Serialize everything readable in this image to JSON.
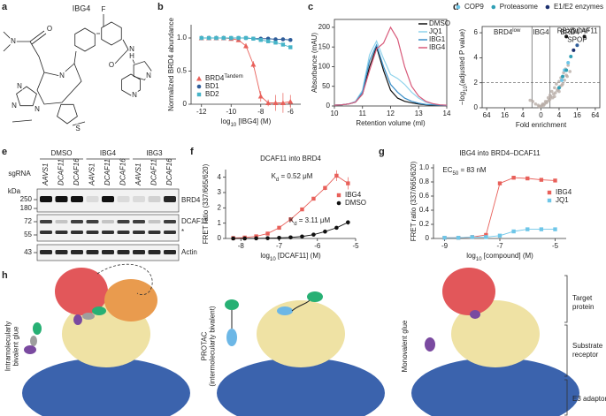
{
  "panels": [
    "a",
    "b",
    "c",
    "d",
    "e",
    "f",
    "g",
    "h"
  ],
  "structure": {
    "name": "IBG4",
    "atoms": [
      "N",
      "O",
      "N",
      "N",
      "N",
      "N",
      "S",
      "F",
      "O",
      "N",
      "H",
      "N",
      "N"
    ]
  },
  "chart_data": [
    {
      "type": "line",
      "xlabel": [
        "log",
        "10",
        " [IBG4] (M)"
      ],
      "ylabel": "Normalized BRD4 abundance",
      "xlim": [
        -12.7,
        -5.3
      ],
      "xticks": [
        -12,
        -10,
        -8,
        -6
      ],
      "ylim": [
        0,
        1.2
      ],
      "yticks": [
        0,
        0.5,
        {
          "value": 1,
          "label": "1.0"
        }
      ],
      "markers": true,
      "legend": "lower left",
      "x": [
        -12,
        -11.5,
        -11,
        -10.5,
        -10,
        -9.5,
        -9,
        -8.5,
        -8,
        -7.5,
        -7,
        -6.5,
        -6
      ],
      "series": [
        {
          "name": [
            "BRD4",
            "Tandem"
          ],
          "color": "#e8605a",
          "marker": "triangle",
          "values": [
            1,
            1,
            1,
            1,
            0.99,
            0.97,
            0.88,
            0.6,
            0.12,
            0.02,
            0.02,
            0.02,
            0.04
          ],
          "errors": [
            0.02,
            0.02,
            0.02,
            0.02,
            0.02,
            0.03,
            0.04,
            0.05,
            0.08,
            0.05,
            0.12,
            0.15,
            0.1
          ]
        },
        {
          "name": "BD1",
          "color": "#2f5d9a",
          "marker": "circle",
          "values": [
            1,
            1,
            1,
            1,
            1,
            1,
            1,
            0.99,
            0.99,
            0.99,
            0.98,
            0.98,
            0.97
          ]
        },
        {
          "name": "BD2",
          "color": "#46b4c8",
          "marker": "square",
          "values": [
            1,
            1,
            1,
            1,
            1,
            1,
            1,
            0.99,
            0.97,
            0.95,
            0.93,
            0.9,
            0.86
          ]
        }
      ]
    },
    {
      "type": "line",
      "xlabel": "Retention volume (ml)",
      "ylabel": "Absorbance (mAU)",
      "frame": true,
      "xlim": [
        10,
        14
      ],
      "xticks": [
        10,
        11,
        12,
        13,
        14
      ],
      "ylim": [
        0,
        220
      ],
      "yticks": [
        0,
        50,
        100,
        150,
        200
      ],
      "markers": false,
      "legend": "upper right",
      "x": [
        10,
        10.25,
        10.5,
        10.75,
        11,
        11.25,
        11.5,
        11.75,
        12,
        12.25,
        12.5,
        12.75,
        13,
        13.25,
        13.5,
        13.75,
        14
      ],
      "series": [
        {
          "name": "DMSO",
          "color": "#111111",
          "values": [
            2,
            3,
            5,
            10,
            30,
            100,
            150,
            90,
            40,
            20,
            12,
            8,
            5,
            3,
            2,
            2,
            1
          ]
        },
        {
          "name": "JQ1",
          "color": "#8fd3ec",
          "values": [
            2,
            3,
            5,
            12,
            40,
            130,
            165,
            120,
            80,
            70,
            55,
            35,
            20,
            10,
            5,
            3,
            2
          ]
        },
        {
          "name": "IBG1",
          "color": "#3a8fc9",
          "values": [
            2,
            3,
            5,
            10,
            35,
            115,
            155,
            100,
            55,
            35,
            20,
            12,
            7,
            4,
            3,
            2,
            1
          ]
        },
        {
          "name": "IBG4",
          "color": "#d85a7a",
          "values": [
            2,
            3,
            5,
            10,
            30,
            90,
            145,
            160,
            200,
            170,
            100,
            50,
            25,
            12,
            6,
            3,
            2
          ]
        }
      ]
    },
    {
      "type": "scatter",
      "xlabel": "Fold enrichment",
      "ylabel": [
        "−log",
        "10",
        "(adjusted P value)"
      ],
      "frame": true,
      "xlim": [
        -6.5,
        6.5
      ],
      "xticks": [
        {
          "value": -6,
          "label": "64"
        },
        {
          "value": -4,
          "label": "16"
        },
        {
          "value": -2,
          "label": "4"
        },
        0,
        {
          "value": 2,
          "label": "4"
        },
        {
          "value": 4,
          "label": "16"
        },
        {
          "value": 6,
          "label": "64"
        }
      ],
      "ylim": [
        0,
        6.5
      ],
      "yticks": [
        0,
        2,
        4,
        6
      ],
      "hline": 2,
      "vlines": [
        -1,
        1
      ],
      "legend": "top",
      "regions": [
        [
          "BRD4",
          "low"
        ],
        "IBG4",
        [
          "BRD4",
          "high"
        ]
      ],
      "background": {
        "color": "#b8aca6",
        "x": [
          0.2,
          0.5,
          0.8,
          1.0,
          1.2,
          1.5,
          1.7,
          2.0,
          2.2,
          2.5,
          2.7,
          3.0,
          0.3,
          0.6,
          0.9,
          1.1,
          1.4,
          1.8,
          2.1,
          2.4,
          -0.3,
          -0.6,
          -0.9,
          -1.2,
          -0.2,
          0.1,
          0.4,
          0.7,
          1.3,
          1.6,
          1.9,
          2.3,
          2.6,
          2.9,
          3.2,
          0.0,
          1.0,
          1.5,
          2.0,
          2.8
        ],
        "y": [
          0.3,
          0.5,
          0.8,
          1.0,
          1.3,
          1.6,
          1.9,
          2.1,
          2.4,
          2.8,
          3.1,
          3.4,
          0.2,
          0.4,
          0.6,
          0.9,
          1.1,
          1.4,
          1.7,
          1.9,
          0.2,
          0.3,
          0.5,
          0.6,
          0.1,
          0.2,
          0.3,
          0.5,
          0.8,
          1.2,
          1.5,
          1.8,
          2.2,
          2.5,
          2.9,
          0.1,
          0.7,
          0.9,
          1.3,
          2.6
        ]
      },
      "series": [
        {
          "name": "COP9",
          "color": "#6ec6e8",
          "x": [
            2.3,
            2.6,
            3.0
          ],
          "values": [
            2.2,
            3.0,
            3.6
          ]
        },
        {
          "name": "Proteasome",
          "color": "#2f9fb5",
          "x": [
            2.0,
            2.4,
            2.8,
            3.3
          ],
          "values": [
            1.6,
            2.5,
            3.0,
            4.1
          ]
        },
        {
          "name": "E1/E2 enzymes",
          "color": "#1b2f6e",
          "x": [
            3.6
          ],
          "values": [
            4.6
          ]
        }
      ],
      "labeled_points": [
        {
          "label": "RBX1",
          "x": 2.8,
          "y": 5.7,
          "color": "#111111"
        },
        {
          "label": "DCAF11",
          "x": 4.8,
          "y": 5.7,
          "color": "#111111"
        },
        {
          "label": "SPOP",
          "x": 4.0,
          "y": 5.0,
          "color": "#2f5d9a"
        }
      ]
    },
    {
      "type": "line",
      "title": "DCAF11 into BRD4",
      "xlabel": [
        "log",
        "10",
        " [DCAF11] (M)"
      ],
      "ylabel": "FRET ratio (337/665/620)",
      "xlim": [
        -8.4,
        -5
      ],
      "xticks": [
        -8,
        -7,
        -6,
        -5
      ],
      "ylim": [
        0,
        4.5
      ],
      "yticks": [
        0,
        1,
        2,
        3,
        4
      ],
      "markers": true,
      "legend": "center right",
      "x": [
        -8.2,
        -7.9,
        -7.6,
        -7.3,
        -7,
        -6.7,
        -6.4,
        -6.1,
        -5.8,
        -5.5,
        -5.2
      ],
      "series": [
        {
          "name": "IBG4",
          "color": "#e8605a",
          "marker": "square",
          "values": [
            0.03,
            0.06,
            0.14,
            0.32,
            0.7,
            1.25,
            1.9,
            2.6,
            3.3,
            4.1,
            3.6
          ],
          "errors": [
            0.02,
            0.02,
            0.03,
            0.05,
            0.06,
            0.08,
            0.1,
            0.12,
            0.15,
            0.35,
            0.4
          ]
        },
        {
          "name": "DMSO",
          "color": "#111111",
          "marker": "circle",
          "values": [
            0,
            0,
            0.01,
            0.02,
            0.04,
            0.07,
            0.13,
            0.25,
            0.45,
            0.7,
            1.05
          ],
          "errors": [
            0.01,
            0.01,
            0.01,
            0.01,
            0.02,
            0.02,
            0.03,
            0.05,
            0.06,
            0.1,
            0.15
          ]
        }
      ],
      "annotations": [
        [
          "K",
          "d",
          " = 0.52 μM"
        ],
        [
          "K",
          "d",
          " = 3.11 μM"
        ]
      ]
    },
    {
      "type": "line",
      "title": "IBG4 into BRD4–DCAF11",
      "xlabel": [
        "log",
        "10",
        " [compound] (M)"
      ],
      "ylabel": "FRET ratio (337/665/620)",
      "xlim": [
        -9.4,
        -4.6
      ],
      "xticks": [
        -9,
        -7,
        -5
      ],
      "ylim": [
        0,
        1.05
      ],
      "yticks": [
        0,
        0.2,
        0.4,
        0.6,
        0.8,
        {
          "value": 1,
          "label": "1.0"
        }
      ],
      "markers": true,
      "legend": "center right",
      "x": [
        -9,
        -8.5,
        -8,
        -7.5,
        -7,
        -6.5,
        -6,
        -5.5,
        -5
      ],
      "series": [
        {
          "name": "IBG4",
          "color": "#e8605a",
          "marker": "square",
          "values": [
            0.01,
            0.01,
            0.02,
            0.05,
            0.78,
            0.86,
            0.85,
            0.83,
            0.82
          ]
        },
        {
          "name": "JQ1",
          "color": "#6ec6e8",
          "marker": "square",
          "values": [
            0.01,
            0.01,
            0.02,
            0.02,
            0.04,
            0.1,
            0.13,
            0.13,
            0.13
          ]
        }
      ],
      "annotations": [
        [
          "EC",
          "50",
          " = 83 nM"
        ]
      ]
    }
  ],
  "blot": {
    "row_label": "sgRNA",
    "groups": [
      "DMSO",
      "IBG4",
      "IBG3"
    ],
    "lanes": [
      "AAVS1",
      "DCAF11",
      "DCAF16",
      "AAVS1",
      "DCAF11",
      "DCAF16",
      "AAVS1",
      "DCAF11",
      "DCAF16"
    ],
    "kda_label": "kDa",
    "markers": [
      250,
      180,
      72,
      55,
      43
    ],
    "proteins": [
      "BRD4",
      "DCAF11",
      "*",
      "Actin"
    ]
  },
  "schematic": {
    "scenes": [
      [
        "Intramolecularly",
        "bivalent glue"
      ],
      [
        "PROTAC",
        "(intermolecularly bivalent)"
      ],
      [
        "Monovalent glue"
      ]
    ],
    "components": [
      [
        "Target",
        "protein"
      ],
      [
        "Substrate",
        "receptor"
      ],
      [
        "E3 adaptor"
      ]
    ]
  }
}
